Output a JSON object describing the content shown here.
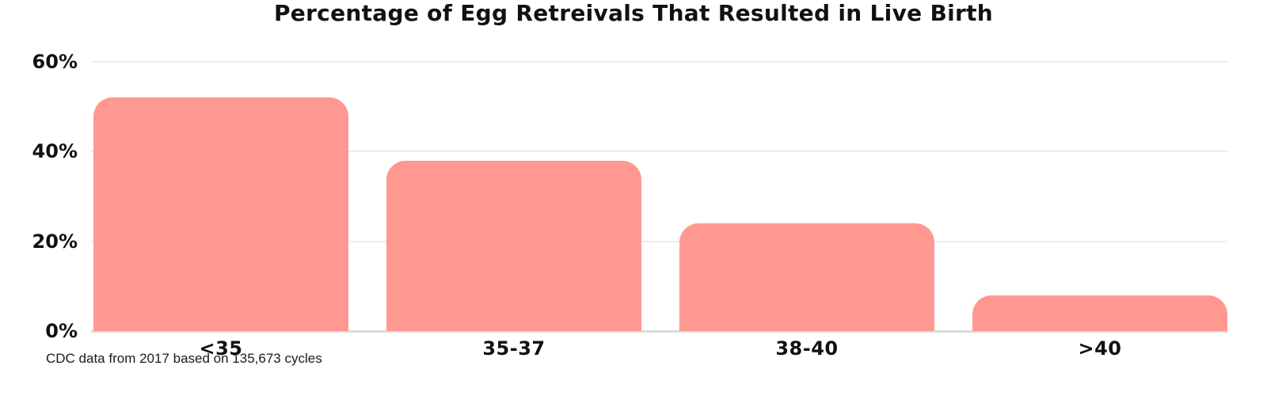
{
  "chart_data": {
    "type": "bar",
    "title": "Percentage of Egg Retreivals That Resulted in Live Birth",
    "categories": [
      "<35",
      "35-37",
      "38-40",
      ">40"
    ],
    "values": [
      52,
      38,
      24,
      8
    ],
    "xlabel": "",
    "ylabel": "",
    "ylim": [
      0,
      60
    ],
    "yticks": [
      "0%",
      "20%",
      "40%",
      "60%"
    ],
    "grid": true,
    "legend": "none",
    "colors": {
      "bar": "#ff9890",
      "gridline": "#ececec",
      "axis_line": "#dcdcdc",
      "text": "#111111",
      "background": "#ffffff"
    }
  },
  "footnote": "CDC data from 2017 based on 135,673 cycles"
}
